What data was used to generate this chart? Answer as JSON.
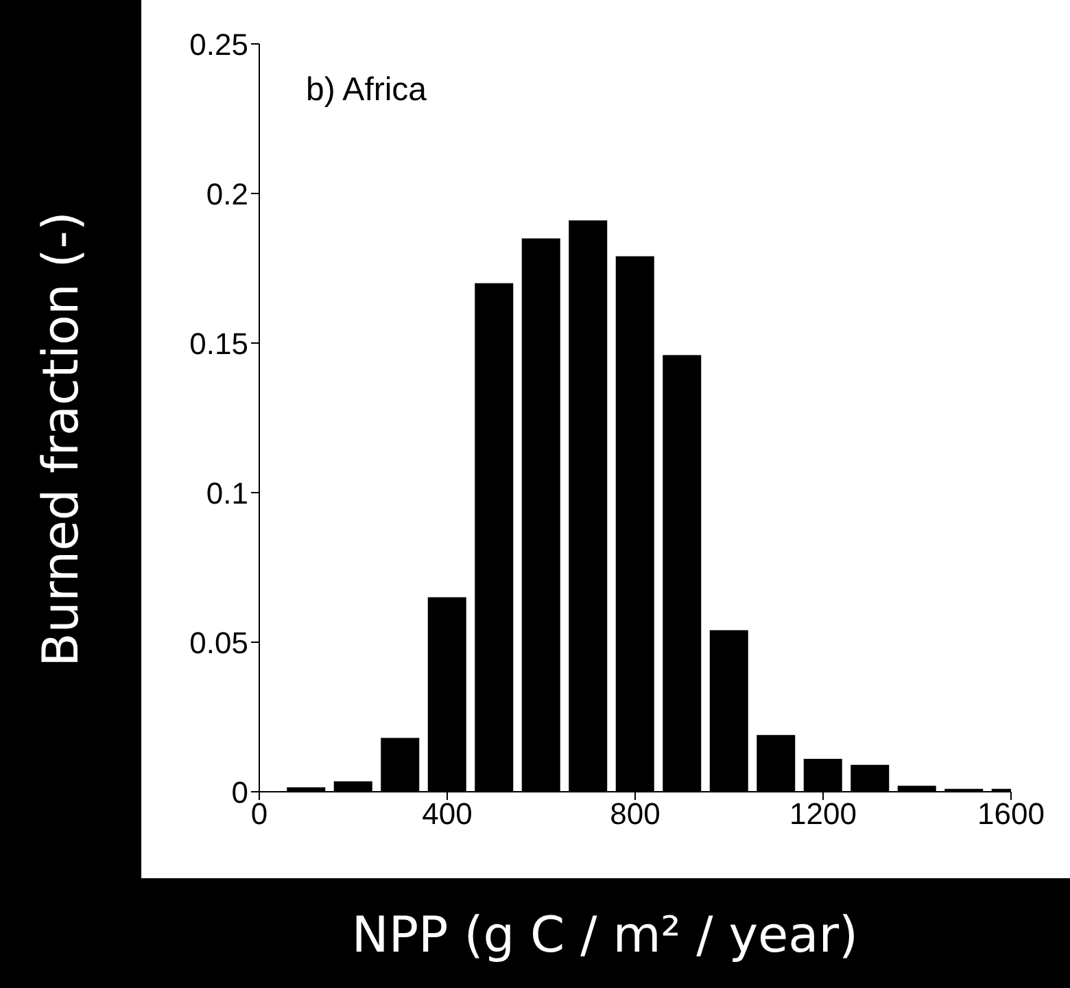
{
  "chart_data": {
    "type": "bar",
    "xlabel": "NPP (g C / m² / year)",
    "ylabel": "Burned fraction (-)",
    "annotations": [
      "b) Africa"
    ],
    "x": [
      100,
      200,
      300,
      400,
      500,
      600,
      700,
      800,
      900,
      1000,
      1100,
      1200,
      1300,
      1400,
      1500,
      1600
    ],
    "values": [
      0.0015,
      0.0035,
      0.018,
      0.065,
      0.17,
      0.185,
      0.191,
      0.179,
      0.146,
      0.054,
      0.019,
      0.011,
      0.009,
      0.002,
      0.001,
      0.001
    ],
    "color": "#000000",
    "xlim": [
      0,
      1600
    ],
    "ylim": [
      0,
      0.25
    ],
    "xticks": [
      0,
      400,
      800,
      1200,
      1600
    ],
    "yticks": [
      0,
      0.05,
      0.1,
      0.15,
      0.2,
      0.25
    ]
  }
}
